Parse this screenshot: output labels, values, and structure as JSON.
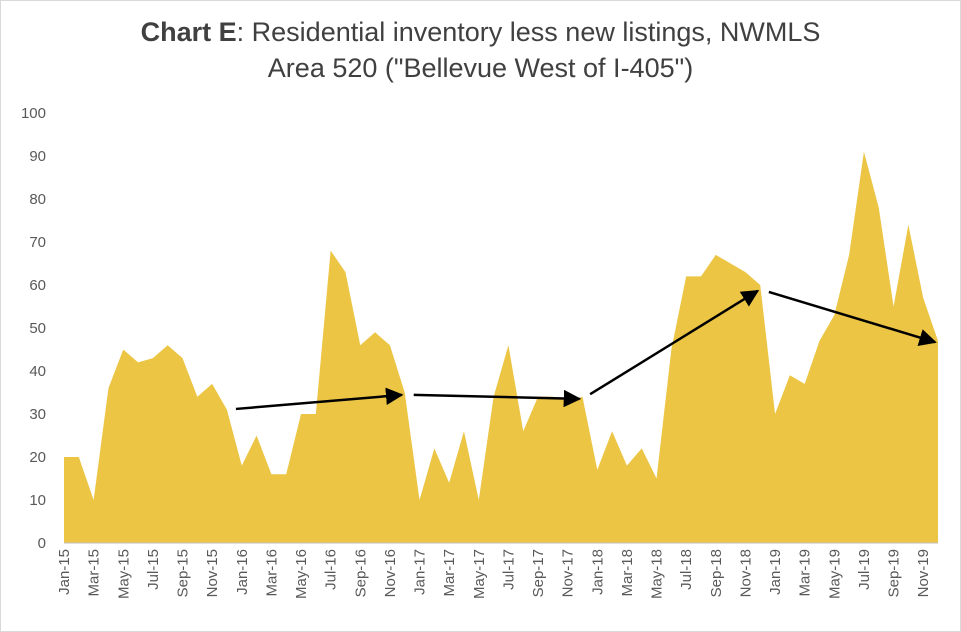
{
  "chart_data": {
    "type": "area",
    "title_bold": "Chart E",
    "title_rest": ": Residential inventory less new listings, NWMLS",
    "title_line2": "Area 520 (\"Bellevue West of I-405\")",
    "xlabel": "",
    "ylabel": "",
    "ylim": [
      0,
      100
    ],
    "yticks": [
      0,
      10,
      20,
      30,
      40,
      50,
      60,
      70,
      80,
      90,
      100
    ],
    "grid": false,
    "fill_color": "#ECC544",
    "arrow_color": "#000000",
    "x_tick_labels": [
      "Jan-15",
      "Mar-15",
      "May-15",
      "Jul-15",
      "Sep-15",
      "Nov-15",
      "Jan-16",
      "Mar-16",
      "May-16",
      "Jul-16",
      "Sep-16",
      "Nov-16",
      "Jan-17",
      "Mar-17",
      "May-17",
      "Jul-17",
      "Sep-17",
      "Nov-17",
      "Jan-18",
      "Mar-18",
      "May-18",
      "Jul-18",
      "Sep-18",
      "Nov-18",
      "Jan-19",
      "Mar-19",
      "May-19",
      "Jul-19",
      "Sep-19",
      "Nov-19"
    ],
    "x": [
      "Jan-15",
      "Feb-15",
      "Mar-15",
      "Apr-15",
      "May-15",
      "Jun-15",
      "Jul-15",
      "Aug-15",
      "Sep-15",
      "Oct-15",
      "Nov-15",
      "Dec-15",
      "Jan-16",
      "Feb-16",
      "Mar-16",
      "Apr-16",
      "May-16",
      "Jun-16",
      "Jul-16",
      "Aug-16",
      "Sep-16",
      "Oct-16",
      "Nov-16",
      "Dec-16",
      "Jan-17",
      "Feb-17",
      "Mar-17",
      "Apr-17",
      "May-17",
      "Jun-17",
      "Jul-17",
      "Aug-17",
      "Sep-17",
      "Oct-17",
      "Nov-17",
      "Dec-17",
      "Jan-18",
      "Feb-18",
      "Mar-18",
      "Apr-18",
      "May-18",
      "Jun-18",
      "Jul-18",
      "Aug-18",
      "Sep-18",
      "Oct-18",
      "Nov-18",
      "Dec-18",
      "Jan-19",
      "Feb-19",
      "Mar-19",
      "Apr-19",
      "May-19",
      "Jun-19",
      "Jul-19",
      "Aug-19",
      "Sep-19",
      "Oct-19",
      "Nov-19",
      "Dec-19"
    ],
    "values": [
      20,
      20,
      10,
      36,
      45,
      42,
      43,
      46,
      43,
      34,
      37,
      31,
      18,
      25,
      16,
      16,
      30,
      30,
      68,
      63,
      46,
      49,
      46,
      35,
      10,
      22,
      14,
      26,
      10,
      34,
      46,
      26,
      34,
      34,
      33,
      34,
      17,
      26,
      18,
      22,
      15,
      45,
      62,
      62,
      67,
      65,
      63,
      60,
      30,
      39,
      37,
      47,
      53,
      67,
      91,
      78,
      55,
      74,
      57,
      47
    ],
    "arrows": [
      {
        "from": [
          "Dec-15",
          31
        ],
        "to": [
          "Dec-16",
          34.5
        ]
      },
      {
        "from": [
          "Dec-16",
          34.5
        ],
        "to": [
          "Dec-17",
          33.5
        ]
      },
      {
        "from": [
          "Dec-17",
          33.5
        ],
        "to": [
          "Dec-18",
          59
        ]
      },
      {
        "from": [
          "Dec-18",
          59
        ],
        "to": [
          "Dec-19",
          46.5
        ]
      }
    ]
  }
}
